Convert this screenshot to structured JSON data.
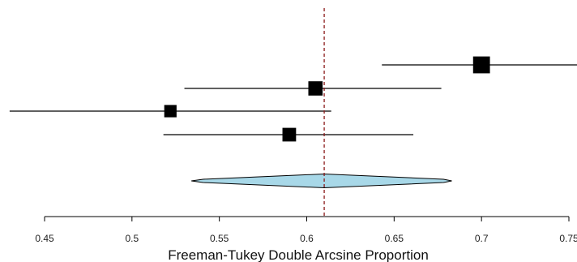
{
  "chart_data": {
    "type": "forest",
    "xlabel": "Freeman-Tukey Double Arcsine Proportion",
    "xlim": [
      0.45,
      0.75
    ],
    "ticks": [
      0.45,
      0.5,
      0.55,
      0.6,
      0.65,
      0.7,
      0.75
    ],
    "tick_labels": [
      "0.45",
      "0.5",
      "0.55",
      "0.6",
      "0.65",
      "0.7",
      "0.75"
    ],
    "reference_line": 0.61,
    "studies": [
      {
        "estimate": 0.7,
        "lower": 0.643,
        "upper": 0.755,
        "weight": 1.3
      },
      {
        "estimate": 0.605,
        "lower": 0.53,
        "upper": 0.677,
        "weight": 1.1
      },
      {
        "estimate": 0.522,
        "lower": 0.43,
        "upper": 0.614,
        "weight": 0.95
      },
      {
        "estimate": 0.59,
        "lower": 0.518,
        "upper": 0.661,
        "weight": 1.05
      }
    ],
    "summary": {
      "estimate": 0.61,
      "lower": 0.537,
      "upper": 0.682,
      "pred_lower": 0.534,
      "pred_upper": 0.683
    },
    "colors": {
      "marker": "#000000",
      "ci_line": "#000000",
      "reference": "#8b1a1a",
      "diamond_fill": "#a8d8e8",
      "diamond_stroke": "#000000"
    }
  }
}
